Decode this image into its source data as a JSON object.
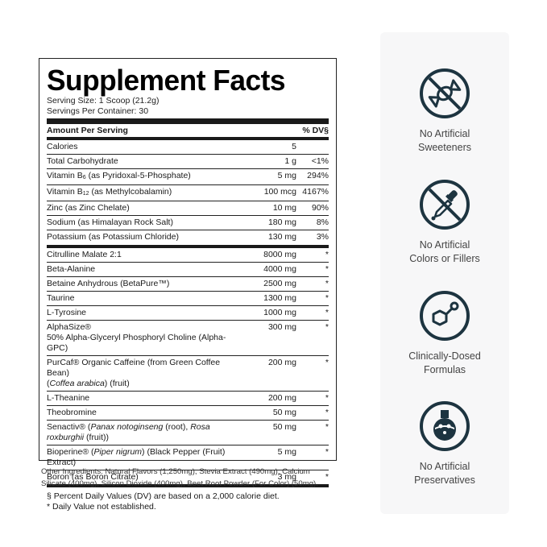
{
  "facts": {
    "title": "Supplement Facts",
    "serving_size": "Serving Size: 1 Scoop (21.2g)",
    "servings_per_container": "Servings Per Container: 30",
    "header_amount": "Amount Per Serving",
    "header_dv": "% DV§",
    "nutrients": [
      {
        "name": "Calories",
        "amount": "5",
        "dv": ""
      },
      {
        "name": "Total Carbohydrate",
        "amount": "1 g",
        "dv": "<1%"
      },
      {
        "name_pre": "Vitamin B",
        "name_sub": "6",
        "name_post": " (as Pyridoxal-5-Phosphate)",
        "amount": "5 mg",
        "dv": "294%"
      },
      {
        "name_pre": "Vitamin B",
        "name_sub": "12",
        "name_post": " (as Methylcobalamin)",
        "amount": "100 mcg",
        "dv": "4167%"
      },
      {
        "name": "Zinc (as Zinc Chelate)",
        "amount": "10 mg",
        "dv": "90%"
      },
      {
        "name": "Sodium (as Himalayan Rock Salt)",
        "amount": "180 mg",
        "dv": "8%"
      },
      {
        "name": "Potassium (as Potassium Chloride)",
        "amount": "130 mg",
        "dv": "3%"
      }
    ],
    "ingredients": [
      {
        "name": "Citrulline Malate 2:1",
        "amount": "8000 mg",
        "dv": "*"
      },
      {
        "name": "Beta-Alanine",
        "amount": "4000 mg",
        "dv": "*"
      },
      {
        "name": "Betaine Anhydrous (BetaPure™)",
        "amount": "2500 mg",
        "dv": "*"
      },
      {
        "name": "Taurine",
        "amount": "1300 mg",
        "dv": "*"
      },
      {
        "name": "L-Tyrosine",
        "amount": "1000 mg",
        "dv": "*"
      },
      {
        "name": "AlphaSize®",
        "name2": "50% Alpha-Glyceryl Phosphoryl Choline (Alpha-GPC)",
        "amount": "300 mg",
        "dv": "*"
      },
      {
        "name": "PurCaf® Organic Caffeine (from Green Coffee Bean)",
        "name2_italic": "Coffea arabica",
        "name2_post": ") (fruit)",
        "name2_pre": "(",
        "amount": "200 mg",
        "dv": "*"
      },
      {
        "name": "L-Theanine",
        "amount": "200 mg",
        "dv": "*"
      },
      {
        "name": "Theobromine",
        "amount": "50 mg",
        "dv": "*"
      },
      {
        "name_pre": "Senactiv® (",
        "name_it1": "Panax notoginseng",
        "name_mid": " (root), ",
        "name_it2": "Rosa roxburghii",
        "name_post": " (fruit))",
        "amount": "50 mg",
        "dv": "*"
      },
      {
        "name_pre": "Bioperine® (",
        "name_it1": "Piper nigrum",
        "name_mid": ") (Black Pepper (Fruit) Extract)",
        "amount": "5 mg",
        "dv": "*"
      },
      {
        "name": "Boron (as Boron Citrate)",
        "amount": "3 mg",
        "dv": "*"
      }
    ],
    "footnote_1": "§ Percent Daily Values (DV) are based on a 2,000 calorie diet.",
    "footnote_2": "* Daily Value not established."
  },
  "other_ingredients_1": "Other Ingredients: Natural Flavors (1,250mg), Stevia Extract (490mg), Calcium",
  "other_ingredients_2": "Silicate (400mg), Silicon Dioxide (400mg), Beet Root Powder (For Color) (50mg).",
  "features": [
    {
      "icon": "no-candy-icon",
      "line1": "No Artificial",
      "line2": "Sweeteners"
    },
    {
      "icon": "no-dropper-icon",
      "line1": "No Artificial",
      "line2": "Colors or Fillers"
    },
    {
      "icon": "molecule-icon",
      "line1": "Clinically-Dosed",
      "line2": "Formulas"
    },
    {
      "icon": "flask-icon",
      "line1": "No Artificial",
      "line2": "Preservatives"
    }
  ],
  "colors": {
    "icon_dark": "#1d3440",
    "card_bg": "#f7f7f8"
  }
}
